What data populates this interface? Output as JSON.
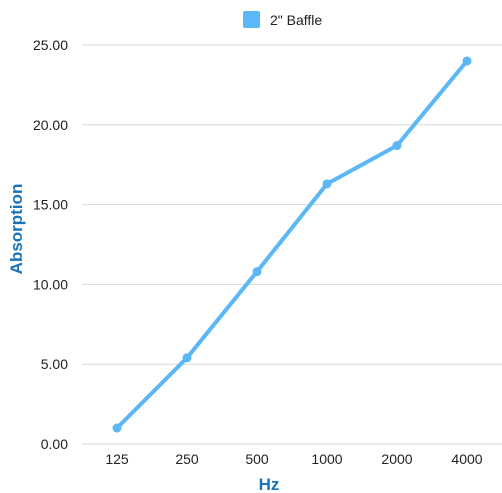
{
  "chart_data": {
    "type": "line",
    "title": "",
    "xlabel": "Hz",
    "ylabel": "Absorption",
    "categories": [
      "125",
      "250",
      "500",
      "1000",
      "2000",
      "4000"
    ],
    "series": [
      {
        "name": "2\" Baffle",
        "values": [
          1.0,
          5.4,
          10.8,
          16.3,
          18.7,
          24.0
        ]
      }
    ],
    "ylim": [
      0,
      25
    ],
    "yticks": [
      "0.00",
      "5.00",
      "10.00",
      "15.00",
      "20.00",
      "25.00"
    ],
    "grid": true,
    "legend_position": "top-center",
    "colors": {
      "series": "#5cb7f7",
      "axis_title": "#1a73b8",
      "grid": "#d9d9d9"
    }
  }
}
